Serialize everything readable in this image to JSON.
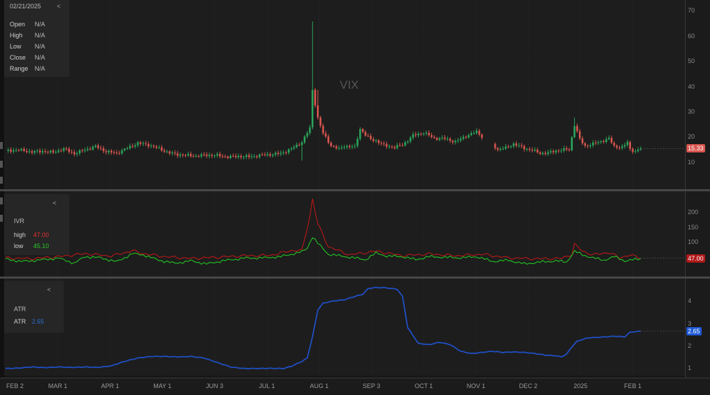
{
  "info": {
    "date": "02/21/2025",
    "collapse": "<",
    "fields": [
      {
        "label": "Open",
        "value": "N/A"
      },
      {
        "label": "High",
        "value": "N/A"
      },
      {
        "label": "Low",
        "value": "N/A"
      },
      {
        "label": "Close",
        "value": "N/A"
      },
      {
        "label": "Range",
        "value": "N/A"
      }
    ]
  },
  "ivr_legend": {
    "collapse": "<",
    "name": "IVR",
    "rows": [
      {
        "label": "high",
        "value": "47.00",
        "color": "#e53030"
      },
      {
        "label": "low",
        "value": "45.10",
        "color": "#28c828"
      }
    ]
  },
  "atr_legend": {
    "collapse": "<",
    "name": "ATR",
    "row": {
      "label": "ATR",
      "value": "2.65",
      "color": "#2a6fd6"
    }
  },
  "colors": {
    "up": "#2aa55a",
    "down": "#d9564f",
    "ivr_high": "#b01818",
    "ivr_low": "#22b822",
    "atr": "#1f4fc4"
  },
  "chart_data": [
    {
      "type": "candlestick",
      "title": "VIX",
      "yticks": [
        10,
        20,
        30,
        40,
        50,
        60,
        70
      ],
      "ylim": [
        2,
        72
      ],
      "last_value_label": "15.33",
      "last_value": 15.33,
      "x_ticks": [
        "FEB 2",
        "MAR 1",
        "APR 1",
        "MAY 1",
        "JUN 3",
        "JUL 1",
        "AUG 1",
        "SEP 3",
        "OCT 1",
        "NOV 1",
        "DEC 2",
        "2025",
        "FEB 1"
      ],
      "close_points": [
        [
          0,
          14.5
        ],
        [
          5,
          14.8
        ],
        [
          10,
          14.0
        ],
        [
          14,
          14.3
        ],
        [
          18,
          13.8
        ],
        [
          22,
          15.2
        ],
        [
          26,
          13.4
        ],
        [
          30,
          14.8
        ],
        [
          34,
          16.2
        ],
        [
          38,
          14.2
        ],
        [
          42,
          13.5
        ],
        [
          46,
          15.5
        ],
        [
          50,
          17.5
        ],
        [
          54,
          16.8
        ],
        [
          58,
          15.3
        ],
        [
          62,
          13.6
        ],
        [
          65,
          13.0
        ],
        [
          68,
          12.7
        ],
        [
          72,
          12.4
        ],
        [
          76,
          12.8
        ],
        [
          80,
          12.6
        ],
        [
          84,
          12.0
        ],
        [
          88,
          12.3
        ],
        [
          92,
          12.1
        ],
        [
          96,
          12.6
        ],
        [
          100,
          13.0
        ],
        [
          104,
          13.4
        ],
        [
          108,
          15.2
        ],
        [
          110,
          16.5
        ],
        [
          112,
          18.0
        ],
        [
          115,
          23.4
        ],
        [
          116,
          38.6
        ],
        [
          118,
          27.5
        ],
        [
          120,
          21.3
        ],
        [
          123,
          16.5
        ],
        [
          126,
          15.1
        ],
        [
          128,
          16.4
        ],
        [
          132,
          15.9
        ],
        [
          134,
          23.2
        ],
        [
          136,
          20.7
        ],
        [
          138,
          19.0
        ],
        [
          140,
          18.5
        ],
        [
          143,
          16.6
        ],
        [
          147,
          15.9
        ],
        [
          150,
          16.8
        ],
        [
          154,
          20.5
        ],
        [
          158,
          21.7
        ],
        [
          162,
          19.4
        ],
        [
          166,
          19.3
        ],
        [
          170,
          18.0
        ],
        [
          174,
          20.3
        ],
        [
          178,
          22.0
        ],
        [
          179,
          21.1
        ],
        [
          181,
          19.1
        ],
        [
          182,
          19.6
        ],
        [
          184,
          17.2
        ],
        [
          186,
          14.9
        ],
        [
          189,
          15.6
        ],
        [
          192,
          17.2
        ],
        [
          196,
          15.5
        ],
        [
          199,
          14.7
        ],
        [
          202,
          13.5
        ],
        [
          205,
          13.6
        ],
        [
          208,
          14.5
        ],
        [
          212,
          15.0
        ],
        [
          213,
          14.8
        ],
        [
          215,
          24.8
        ],
        [
          217,
          19.0
        ],
        [
          219,
          16.3
        ],
        [
          222,
          17.2
        ],
        [
          226,
          18.5
        ],
        [
          228,
          19.3
        ],
        [
          230,
          16.2
        ],
        [
          233,
          15.8
        ],
        [
          235,
          17.8
        ],
        [
          236,
          15.1
        ],
        [
          238,
          14.2
        ],
        [
          240,
          15.3
        ]
      ],
      "notable_highs": [
        {
          "x": 116,
          "value": 65.7
        },
        {
          "x": 118,
          "value": 38.6
        },
        {
          "x": 215,
          "value": 27.6
        }
      ]
    },
    {
      "type": "line",
      "title": "IVR",
      "yticks": [
        100,
        150,
        200
      ],
      "ylim": [
        0,
        250
      ],
      "last_value_label": "47.00",
      "last_value": 47,
      "series": [
        {
          "name": "high",
          "points": [
            [
              0,
              48
            ],
            [
              10,
              45
            ],
            [
              20,
              52
            ],
            [
              30,
              62
            ],
            [
              40,
              54
            ],
            [
              48,
              72
            ],
            [
              52,
              62
            ],
            [
              60,
              52
            ],
            [
              70,
              46
            ],
            [
              80,
              50
            ],
            [
              90,
              55
            ],
            [
              100,
              56
            ],
            [
              108,
              72
            ],
            [
              112,
              72
            ],
            [
              115,
              185
            ],
            [
              116,
              243
            ],
            [
              118,
              160
            ],
            [
              122,
              85
            ],
            [
              130,
              58
            ],
            [
              140,
              70
            ],
            [
              150,
              55
            ],
            [
              160,
              61
            ],
            [
              170,
              55
            ],
            [
              180,
              60
            ],
            [
              190,
              48
            ],
            [
              200,
              45
            ],
            [
              210,
              46
            ],
            [
              214,
              60
            ],
            [
              215,
              93
            ],
            [
              218,
              70
            ],
            [
              222,
              58
            ],
            [
              228,
              66
            ],
            [
              232,
              48
            ],
            [
              236,
              58
            ],
            [
              240,
              47
            ]
          ]
        },
        {
          "name": "low",
          "points": [
            [
              0,
              44
            ],
            [
              6,
              36
            ],
            [
              12,
              40
            ],
            [
              20,
              47
            ],
            [
              26,
              30
            ],
            [
              30,
              52
            ],
            [
              36,
              48
            ],
            [
              42,
              35
            ],
            [
              48,
              62
            ],
            [
              52,
              58
            ],
            [
              58,
              40
            ],
            [
              64,
              30
            ],
            [
              70,
              38
            ],
            [
              76,
              28
            ],
            [
              82,
              38
            ],
            [
              90,
              47
            ],
            [
              98,
              48
            ],
            [
              104,
              52
            ],
            [
              108,
              60
            ],
            [
              112,
              68
            ],
            [
              114,
              80
            ],
            [
              116,
              118
            ],
            [
              118,
              96
            ],
            [
              122,
              60
            ],
            [
              130,
              50
            ],
            [
              136,
              42
            ],
            [
              140,
              64
            ],
            [
              144,
              54
            ],
            [
              150,
              52
            ],
            [
              155,
              42
            ],
            [
              160,
              52
            ],
            [
              166,
              50
            ],
            [
              172,
              48
            ],
            [
              178,
              52
            ],
            [
              184,
              36
            ],
            [
              190,
              40
            ],
            [
              196,
              28
            ],
            [
              202,
              34
            ],
            [
              208,
              38
            ],
            [
              212,
              34
            ],
            [
              215,
              70
            ],
            [
              218,
              58
            ],
            [
              222,
              48
            ],
            [
              226,
              40
            ],
            [
              230,
              52
            ],
            [
              234,
              38
            ],
            [
              240,
              45
            ]
          ]
        }
      ]
    },
    {
      "type": "line",
      "title": "ATR",
      "yticks": [
        1,
        2,
        3,
        4
      ],
      "ylim": [
        0.85,
        4.75
      ],
      "last_value_label": "2.65",
      "last_value": 2.65,
      "series": [
        {
          "name": "ATR",
          "points": [
            [
              0,
              0.98
            ],
            [
              5,
              1.0
            ],
            [
              10,
              1.05
            ],
            [
              15,
              1.02
            ],
            [
              20,
              1.05
            ],
            [
              25,
              1.03
            ],
            [
              30,
              1.05
            ],
            [
              35,
              1.03
            ],
            [
              40,
              1.1
            ],
            [
              45,
              1.3
            ],
            [
              50,
              1.45
            ],
            [
              55,
              1.52
            ],
            [
              60,
              1.52
            ],
            [
              66,
              1.5
            ],
            [
              70,
              1.52
            ],
            [
              75,
              1.45
            ],
            [
              80,
              1.25
            ],
            [
              85,
              1.05
            ],
            [
              90,
              0.98
            ],
            [
              95,
              0.98
            ],
            [
              100,
              0.99
            ],
            [
              105,
              0.98
            ],
            [
              108,
              1.08
            ],
            [
              112,
              1.3
            ],
            [
              114,
              1.45
            ],
            [
              116,
              2.4
            ],
            [
              118,
              3.6
            ],
            [
              120,
              3.9
            ],
            [
              124,
              4.0
            ],
            [
              128,
              4.05
            ],
            [
              132,
              4.2
            ],
            [
              135,
              4.3
            ],
            [
              137,
              4.55
            ],
            [
              140,
              4.6
            ],
            [
              144,
              4.58
            ],
            [
              148,
              4.52
            ],
            [
              150,
              4.2
            ],
            [
              152,
              2.8
            ],
            [
              156,
              2.1
            ],
            [
              160,
              2.05
            ],
            [
              164,
              2.15
            ],
            [
              168,
              2.05
            ],
            [
              172,
              1.75
            ],
            [
              176,
              1.65
            ],
            [
              180,
              1.7
            ],
            [
              184,
              1.75
            ],
            [
              188,
              1.7
            ],
            [
              192,
              1.72
            ],
            [
              196,
              1.7
            ],
            [
              200,
              1.65
            ],
            [
              204,
              1.58
            ],
            [
              208,
              1.55
            ],
            [
              210,
              1.5
            ],
            [
              212,
              1.62
            ],
            [
              214,
              1.95
            ],
            [
              216,
              2.2
            ],
            [
              220,
              2.35
            ],
            [
              225,
              2.38
            ],
            [
              230,
              2.42
            ],
            [
              234,
              2.4
            ],
            [
              236,
              2.6
            ],
            [
              240,
              2.65
            ]
          ]
        }
      ]
    }
  ]
}
